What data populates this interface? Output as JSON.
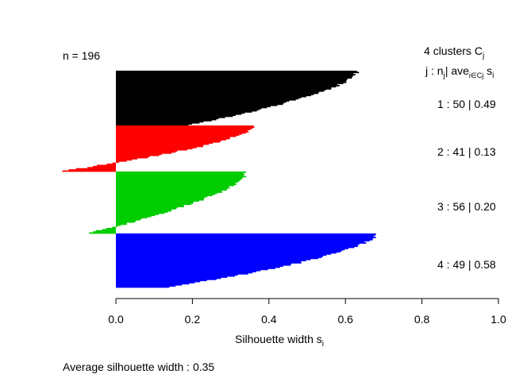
{
  "chart_data": {
    "type": "bar",
    "orientation": "horizontal",
    "xlabel": "Silhouette width",
    "xlabel_sub": "i",
    "xlabel_var": "s",
    "xlim": [
      0.0,
      1.0
    ],
    "xticks": [
      "0.0",
      "0.2",
      "0.4",
      "0.6",
      "0.8",
      "1.0"
    ],
    "n_label": "n = 196",
    "legend": {
      "title_count": "4",
      "title_word": "clusters",
      "title_sym": "C",
      "title_sub": "j",
      "header_j": "j :",
      "header_n": "n",
      "header_n_sub": "j",
      "header_sep": "|",
      "header_ave": "ave",
      "header_ave_sub": "i∈Cj",
      "header_s": "s",
      "header_s_sub": "i"
    },
    "footer": {
      "label": "Average silhouette width :",
      "value": "0.35"
    },
    "clusters": [
      {
        "id": 1,
        "label": "1 :",
        "n": "50",
        "avg": "0.49",
        "color": "#000000",
        "max_width": 0.63,
        "min_width": 0.19
      },
      {
        "id": 2,
        "label": "2 :",
        "n": "41",
        "avg": "0.13",
        "color": "#ff0000",
        "max_width": 0.36,
        "min_width": -0.14
      },
      {
        "id": 3,
        "label": "3 :",
        "n": "56",
        "avg": "0.20",
        "color": "#00cd00",
        "max_width": 0.34,
        "min_width": -0.07
      },
      {
        "id": 4,
        "label": "4 :",
        "n": "49",
        "avg": "0.58",
        "color": "#0000ff",
        "max_width": 0.68,
        "min_width": 0.14
      }
    ]
  }
}
